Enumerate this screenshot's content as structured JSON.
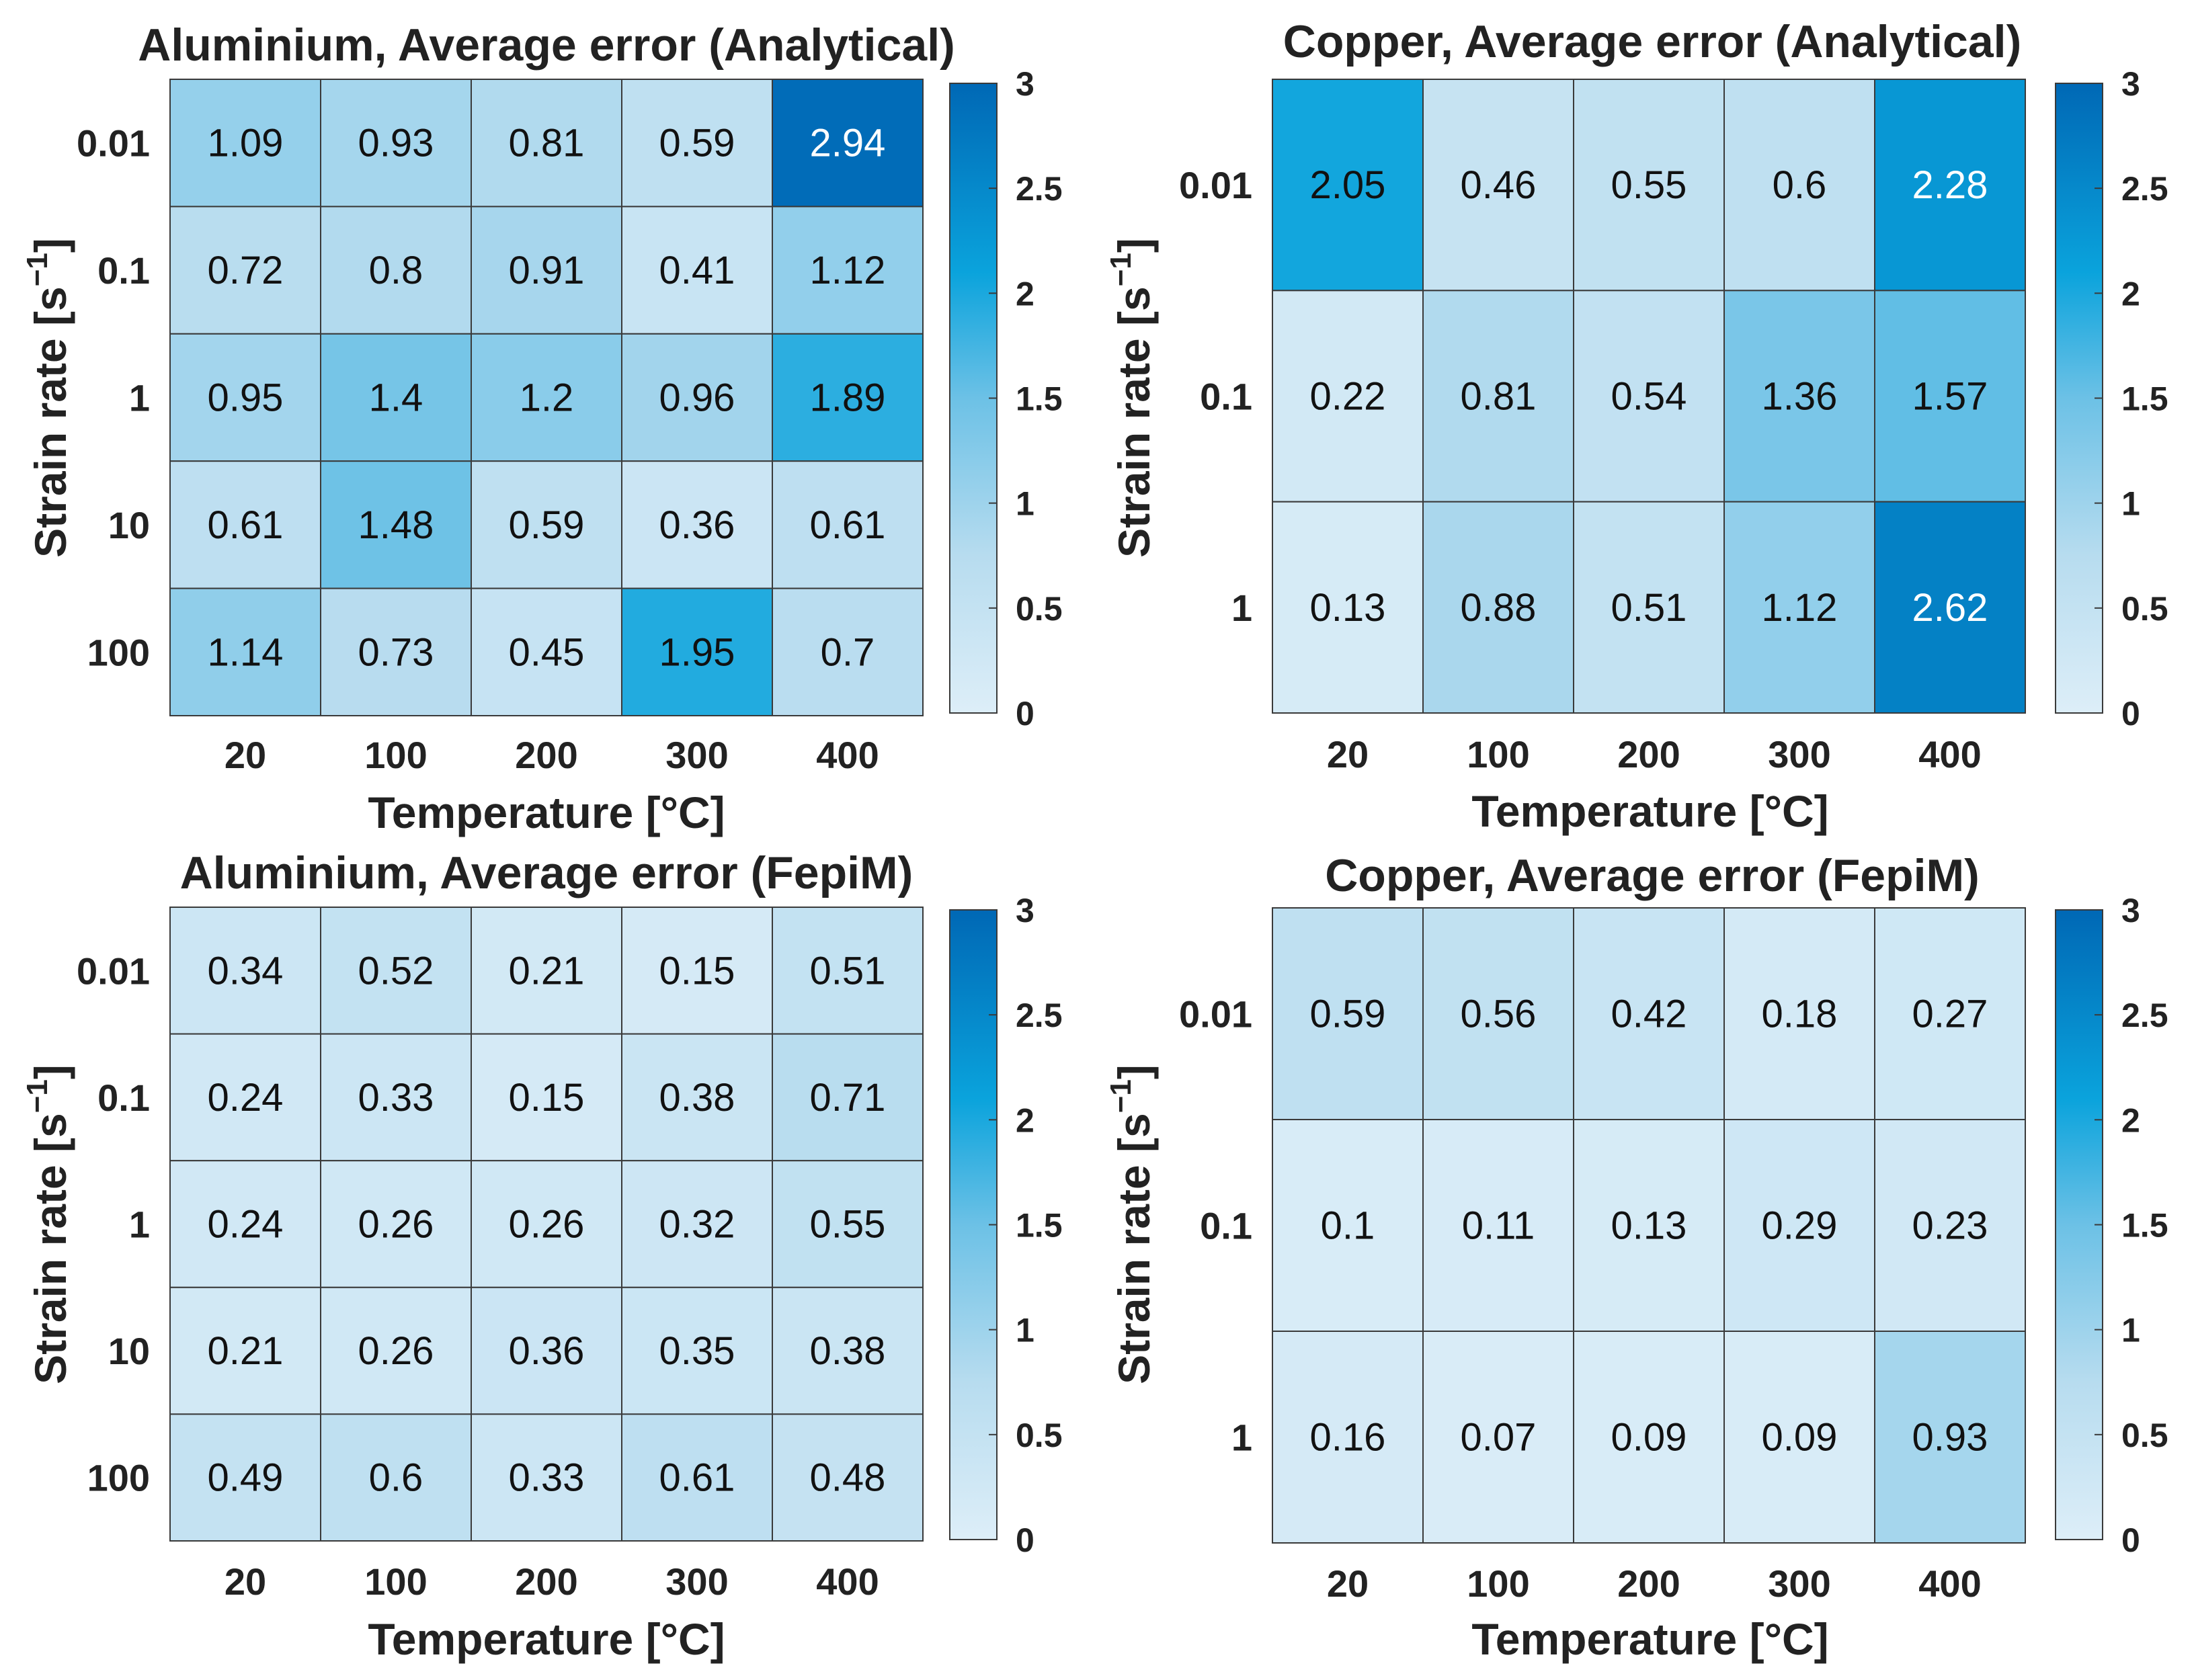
{
  "chart_data": [
    {
      "type": "heatmap",
      "title": "Aluminium, Average error (Analytical)",
      "xlabel": "Temperature [°C]",
      "ylabel": "Strain rate [s",
      "ylabel_sup": "−1",
      "ylabel_end": "]",
      "x_categories": [
        "20",
        "100",
        "200",
        "300",
        "400"
      ],
      "y_categories": [
        "0.01",
        "0.1",
        "1",
        "10",
        "100"
      ],
      "values": [
        [
          1.09,
          0.93,
          0.81,
          0.59,
          2.94
        ],
        [
          0.72,
          0.8,
          0.91,
          0.41,
          1.12
        ],
        [
          0.95,
          1.4,
          1.2,
          0.96,
          1.89
        ],
        [
          0.61,
          1.48,
          0.59,
          0.36,
          0.61
        ],
        [
          1.14,
          0.73,
          0.45,
          1.95,
          0.7
        ]
      ],
      "labels": [
        [
          "1.09",
          "0.93",
          "0.81",
          "0.59",
          "2.94"
        ],
        [
          "0.72",
          "0.8",
          "0.91",
          "0.41",
          "1.12"
        ],
        [
          "0.95",
          "1.4",
          "1.2",
          "0.96",
          "1.89"
        ],
        [
          "0.61",
          "1.48",
          "0.59",
          "0.36",
          "0.61"
        ],
        [
          "1.14",
          "0.73",
          "0.45",
          "1.95",
          "0.7"
        ]
      ],
      "clim": [
        0,
        3
      ],
      "colorbar_ticks": [
        "0",
        "0.5",
        "1",
        "1.5",
        "2",
        "2.5",
        "3"
      ]
    },
    {
      "type": "heatmap",
      "title": "Copper, Average error (Analytical)",
      "xlabel": "Temperature [°C]",
      "ylabel": "Strain rate [s",
      "ylabel_sup": "−1",
      "ylabel_end": "]",
      "x_categories": [
        "20",
        "100",
        "200",
        "300",
        "400"
      ],
      "y_categories": [
        "0.01",
        "0.1",
        "1"
      ],
      "values": [
        [
          2.05,
          0.46,
          0.55,
          0.6,
          2.28
        ],
        [
          0.22,
          0.81,
          0.54,
          1.36,
          1.57
        ],
        [
          0.13,
          0.88,
          0.51,
          1.12,
          2.62
        ]
      ],
      "labels": [
        [
          "2.05",
          "0.46",
          "0.55",
          "0.6",
          "2.28"
        ],
        [
          "0.22",
          "0.81",
          "0.54",
          "1.36",
          "1.57"
        ],
        [
          "0.13",
          "0.88",
          "0.51",
          "1.12",
          "2.62"
        ]
      ],
      "clim": [
        0,
        3
      ],
      "colorbar_ticks": [
        "0",
        "0.5",
        "1",
        "1.5",
        "2",
        "2.5",
        "3"
      ]
    },
    {
      "type": "heatmap",
      "title": "Aluminium, Average error (FepiM)",
      "xlabel": "Temperature [°C]",
      "ylabel": "Strain rate [s",
      "ylabel_sup": "−1",
      "ylabel_end": "]",
      "x_categories": [
        "20",
        "100",
        "200",
        "300",
        "400"
      ],
      "y_categories": [
        "0.01",
        "0.1",
        "1",
        "10",
        "100"
      ],
      "values": [
        [
          0.34,
          0.52,
          0.21,
          0.15,
          0.51
        ],
        [
          0.24,
          0.33,
          0.15,
          0.38,
          0.71
        ],
        [
          0.24,
          0.26,
          0.26,
          0.32,
          0.55
        ],
        [
          0.21,
          0.26,
          0.36,
          0.35,
          0.38
        ],
        [
          0.49,
          0.6,
          0.33,
          0.61,
          0.48
        ]
      ],
      "labels": [
        [
          "0.34",
          "0.52",
          "0.21",
          "0.15",
          "0.51"
        ],
        [
          "0.24",
          "0.33",
          "0.15",
          "0.38",
          "0.71"
        ],
        [
          "0.24",
          "0.26",
          "0.26",
          "0.32",
          "0.55"
        ],
        [
          "0.21",
          "0.26",
          "0.36",
          "0.35",
          "0.38"
        ],
        [
          "0.49",
          "0.6",
          "0.33",
          "0.61",
          "0.48"
        ]
      ],
      "clim": [
        0,
        3
      ],
      "colorbar_ticks": [
        "0",
        "0.5",
        "1",
        "1.5",
        "2",
        "2.5",
        "3"
      ]
    },
    {
      "type": "heatmap",
      "title": "Copper, Average error (FepiM)",
      "xlabel": "Temperature [°C]",
      "ylabel": "Strain rate [s",
      "ylabel_sup": "−1",
      "ylabel_end": "]",
      "x_categories": [
        "20",
        "100",
        "200",
        "300",
        "400"
      ],
      "y_categories": [
        "0.01",
        "0.1",
        "1"
      ],
      "values": [
        [
          0.59,
          0.56,
          0.42,
          0.18,
          0.27
        ],
        [
          0.1,
          0.11,
          0.13,
          0.29,
          0.23
        ],
        [
          0.16,
          0.07,
          0.09,
          0.09,
          0.93
        ]
      ],
      "labels": [
        [
          "0.59",
          "0.56",
          "0.42",
          "0.18",
          "0.27"
        ],
        [
          "0.1",
          "0.11",
          "0.13",
          "0.29",
          "0.23"
        ],
        [
          "0.16",
          "0.07",
          "0.09",
          "0.09",
          "0.93"
        ]
      ],
      "clim": [
        0,
        3
      ],
      "colorbar_ticks": [
        "0",
        "0.5",
        "1",
        "1.5",
        "2",
        "2.5",
        "3"
      ]
    }
  ],
  "colormap": {
    "stops": [
      [
        0,
        "#ddeef8"
      ],
      [
        0.25,
        "#b7dcef"
      ],
      [
        0.5,
        "#6cc1e6"
      ],
      [
        0.7,
        "#0aa3dc"
      ],
      [
        1,
        "#0068b5"
      ]
    ],
    "text_dark": "#111111",
    "text_light": "#ffffff",
    "grid_line": "#3a3a3a"
  }
}
